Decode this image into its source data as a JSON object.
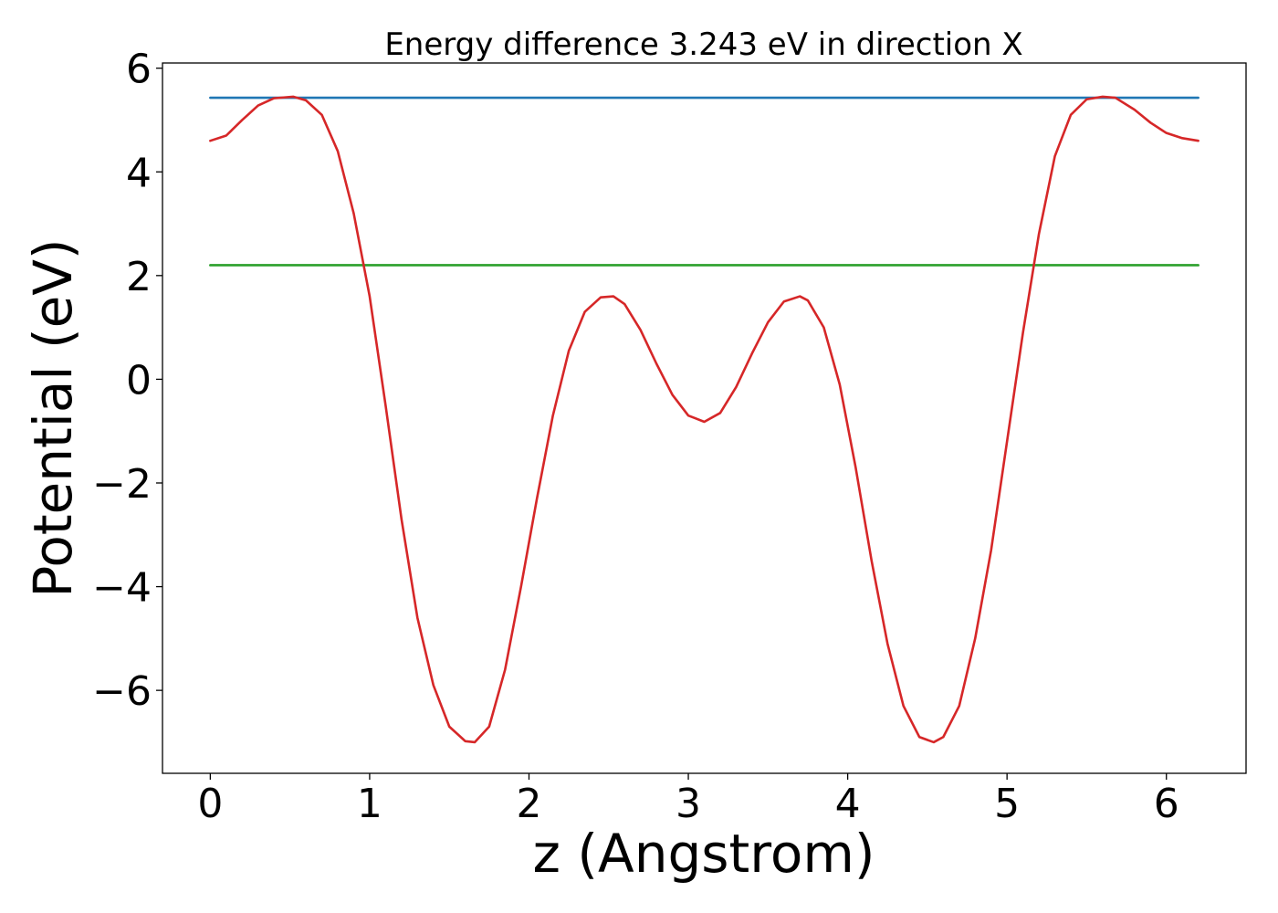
{
  "chart_data": {
    "type": "line",
    "title": "Energy difference 3.243 eV in direction X",
    "xlabel": "z (Angstrom)",
    "ylabel": "Potential (eV)",
    "xlim": [
      -0.3,
      6.5
    ],
    "ylim": [
      -7.6,
      6.1
    ],
    "xticks": [
      0,
      1,
      2,
      3,
      4,
      5,
      6
    ],
    "xtick_labels": [
      "0",
      "1",
      "2",
      "3",
      "4",
      "5",
      "6"
    ],
    "yticks": [
      -6,
      -4,
      -2,
      0,
      2,
      4,
      6
    ],
    "ytick_labels": [
      "−6",
      "−4",
      "−2",
      "0",
      "2",
      "4",
      "6"
    ],
    "grid": false,
    "series": [
      {
        "color": "#1f77b4",
        "x": [
          0,
          6.2
        ],
        "y": [
          5.43,
          5.43
        ]
      },
      {
        "color": "#2ca02c",
        "x": [
          0,
          6.2
        ],
        "y": [
          2.2,
          2.2
        ]
      },
      {
        "color": "#d62728",
        "x": [
          0,
          0.1,
          0.2,
          0.3,
          0.4,
          0.52,
          0.6,
          0.7,
          0.8,
          0.9,
          1.0,
          1.1,
          1.2,
          1.3,
          1.4,
          1.5,
          1.6,
          1.66,
          1.75,
          1.85,
          1.95,
          2.05,
          2.15,
          2.25,
          2.35,
          2.45,
          2.53,
          2.6,
          2.7,
          2.8,
          2.9,
          3.0,
          3.1,
          3.2,
          3.3,
          3.4,
          3.5,
          3.6,
          3.7,
          3.75,
          3.85,
          3.95,
          4.05,
          4.15,
          4.25,
          4.35,
          4.45,
          4.54,
          4.6,
          4.7,
          4.8,
          4.9,
          5.0,
          5.1,
          5.2,
          5.3,
          5.4,
          5.5,
          5.6,
          5.68,
          5.8,
          5.9,
          6.0,
          6.1,
          6.2
        ],
        "y": [
          4.6,
          4.7,
          5.0,
          5.28,
          5.42,
          5.45,
          5.38,
          5.1,
          4.4,
          3.2,
          1.6,
          -0.5,
          -2.7,
          -4.6,
          -5.9,
          -6.7,
          -6.98,
          -7.0,
          -6.7,
          -5.6,
          -4.0,
          -2.3,
          -0.7,
          0.55,
          1.3,
          1.58,
          1.6,
          1.45,
          0.95,
          0.3,
          -0.3,
          -0.7,
          -0.82,
          -0.65,
          -0.15,
          0.5,
          1.1,
          1.5,
          1.6,
          1.52,
          1.0,
          -0.1,
          -1.7,
          -3.5,
          -5.1,
          -6.3,
          -6.9,
          -7.0,
          -6.9,
          -6.3,
          -5.0,
          -3.3,
          -1.2,
          0.9,
          2.8,
          4.3,
          5.1,
          5.4,
          5.45,
          5.43,
          5.2,
          4.95,
          4.75,
          4.65,
          4.6
        ]
      }
    ]
  }
}
